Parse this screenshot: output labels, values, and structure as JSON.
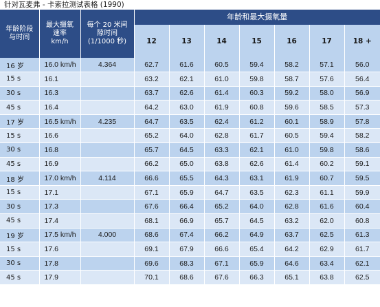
{
  "caption": "针对瓦麦弗 - 卡索拉测试表格 (1990)",
  "header": {
    "col_stage": "年龄阶段与时间",
    "col_speed": "最大摄氧速率 km/h",
    "col_interval": "每个 20 米间隙时间 (1/1000 秒)",
    "group_label": "年龄和最大摄氧量",
    "ages": [
      "12",
      "13",
      "14",
      "15",
      "16",
      "17",
      "18 +"
    ]
  },
  "rows": [
    {
      "stage": "16 岁",
      "speed": "16.0 km/h",
      "interval": "4.364",
      "values": [
        "62.7",
        "61.6",
        "60.5",
        "59.4",
        "58.2",
        "57.1",
        "56.0"
      ]
    },
    {
      "stage": "15 s",
      "speed": "16.1",
      "interval": "",
      "values": [
        "63.2",
        "62.1",
        "61.0",
        "59.8",
        "58.7",
        "57.6",
        "56.4"
      ]
    },
    {
      "stage": "30 s",
      "speed": "16.3",
      "interval": "",
      "values": [
        "63.7",
        "62.6",
        "61.4",
        "60.3",
        "59.2",
        "58.0",
        "56.9"
      ]
    },
    {
      "stage": "45 s",
      "speed": "16.4",
      "interval": "",
      "values": [
        "64.2",
        "63.0",
        "61.9",
        "60.8",
        "59.6",
        "58.5",
        "57.3"
      ]
    },
    {
      "stage": "17 岁",
      "speed": "16.5 km/h",
      "interval": "4.235",
      "values": [
        "64.7",
        "63.5",
        "62.4",
        "61.2",
        "60.1",
        "58.9",
        "57.8"
      ]
    },
    {
      "stage": "15 s",
      "speed": "16.6",
      "interval": "",
      "values": [
        "65.2",
        "64.0",
        "62.8",
        "61.7",
        "60.5",
        "59.4",
        "58.2"
      ]
    },
    {
      "stage": "30 s",
      "speed": "16.8",
      "interval": "",
      "values": [
        "65.7",
        "64.5",
        "63.3",
        "62.1",
        "61.0",
        "59.8",
        "58.6"
      ]
    },
    {
      "stage": "45 s",
      "speed": "16.9",
      "interval": "",
      "values": [
        "66.2",
        "65.0",
        "63.8",
        "62.6",
        "61.4",
        "60.2",
        "59.1"
      ]
    },
    {
      "stage": "18 岁",
      "speed": "17.0 km/h",
      "interval": "4.114",
      "values": [
        "66.6",
        "65.5",
        "64.3",
        "63.1",
        "61.9",
        "60.7",
        "59.5"
      ]
    },
    {
      "stage": "15 s",
      "speed": "17.1",
      "interval": "",
      "values": [
        "67.1",
        "65.9",
        "64.7",
        "63.5",
        "62.3",
        "61.1",
        "59.9"
      ]
    },
    {
      "stage": "30 s",
      "speed": "17.3",
      "interval": "",
      "values": [
        "67.6",
        "66.4",
        "65.2",
        "64.0",
        "62.8",
        "61.6",
        "60.4"
      ]
    },
    {
      "stage": "45 s",
      "speed": "17.4",
      "interval": "",
      "values": [
        "68.1",
        "66.9",
        "65.7",
        "64.5",
        "63.2",
        "62.0",
        "60.8"
      ]
    },
    {
      "stage": "19 岁",
      "speed": "17.5 km/h",
      "interval": "4.000",
      "values": [
        "68.6",
        "67.4",
        "66.2",
        "64.9",
        "63.7",
        "62.5",
        "61.3"
      ]
    },
    {
      "stage": "15 s",
      "speed": "17.6",
      "interval": "",
      "values": [
        "69.1",
        "67.9",
        "66.6",
        "65.4",
        "64.2",
        "62.9",
        "61.7"
      ]
    },
    {
      "stage": "30 s",
      "speed": "17.8",
      "interval": "",
      "values": [
        "69.6",
        "68.3",
        "67.1",
        "65.9",
        "64.6",
        "63.4",
        "62.1"
      ]
    },
    {
      "stage": "45 s",
      "speed": "17.9",
      "interval": "",
      "values": [
        "70.1",
        "68.6",
        "67.6",
        "66.3",
        "65.1",
        "63.8",
        "62.5"
      ]
    }
  ]
}
